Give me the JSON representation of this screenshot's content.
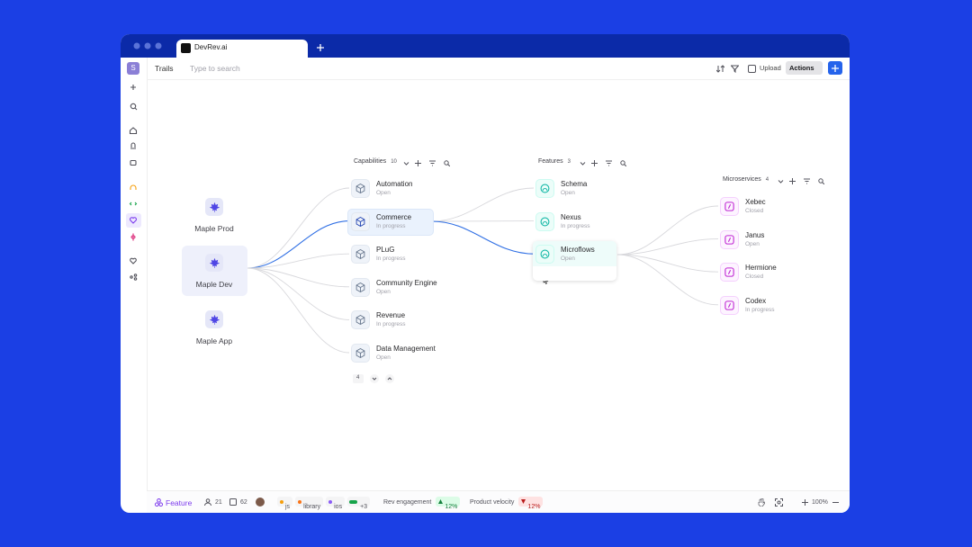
{
  "browser": {
    "tab_title": "DevRev.ai"
  },
  "toolbar": {
    "avatar": "S",
    "breadcrumb": "Trails",
    "search_placeholder": "Type to search",
    "upload": "Upload",
    "actions": "Actions"
  },
  "workspaces": [
    {
      "label": "Maple Prod"
    },
    {
      "label": "Maple Dev"
    },
    {
      "label": "Maple App"
    }
  ],
  "columns": [
    {
      "title": "Capabilities",
      "count": "10",
      "items": [
        {
          "name": "Automation",
          "status": "Open"
        },
        {
          "name": "Commerce",
          "status": "In progress"
        },
        {
          "name": "PLuG",
          "status": "In progress"
        },
        {
          "name": "Community Engine",
          "status": "Open"
        },
        {
          "name": "Revenue",
          "status": "In progress"
        },
        {
          "name": "Data Management",
          "status": "Open"
        }
      ]
    },
    {
      "title": "Features",
      "count": "3",
      "items": [
        {
          "name": "Schema",
          "status": "Open"
        },
        {
          "name": "Nexus",
          "status": "In progress"
        },
        {
          "name": "Microflows",
          "status": "Open"
        }
      ]
    },
    {
      "title": "Microservices",
      "count": "4",
      "items": [
        {
          "name": "Xebec",
          "status": "Closed"
        },
        {
          "name": "Janus",
          "status": "Open"
        },
        {
          "name": "Hermione",
          "status": "Closed"
        },
        {
          "name": "Codex",
          "status": "In progress"
        }
      ]
    }
  ],
  "pagination": "4",
  "status_bar": {
    "type": "Feature",
    "members": "21",
    "tasks": "62",
    "tags": [
      "js",
      "library",
      "ios"
    ],
    "more": "+3",
    "metrics": [
      {
        "name": "Rev engagement",
        "value": "12%"
      },
      {
        "name": "Product velocity",
        "value": "12%"
      }
    ],
    "zoom": "100%"
  }
}
